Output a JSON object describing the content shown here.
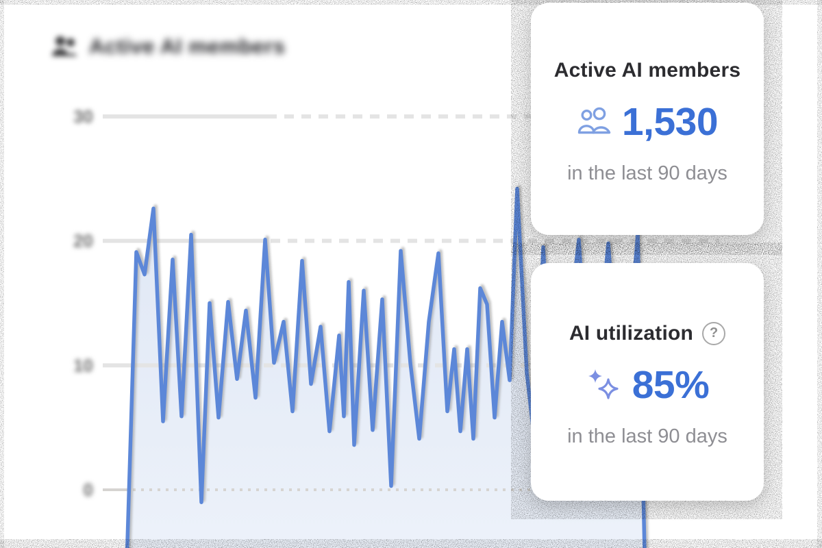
{
  "header": {
    "title": "Active AI members"
  },
  "cards": [
    {
      "title": "Active AI members",
      "icon": "users-icon",
      "value": "1,530",
      "caption": "in the last 90 days"
    },
    {
      "title": "AI utilization",
      "icon": "sparkles-icon",
      "help_icon": "?",
      "value": "85%",
      "caption": "in the last 90 days"
    }
  ],
  "colors": {
    "accent_blue": "#3b70d6",
    "icon_blue": "#7fa0e2",
    "line_blue": "#5c87d8",
    "area_fill_top": "#dfe7f5",
    "area_fill_bottom": "#edf2fa",
    "gridline": "#e4e4e4",
    "zero_line": "#d6d4d1",
    "card_title": "#2c2c30",
    "caption_gray": "#8e8e93",
    "tick_gray": "#6f6f6f"
  },
  "chart_data": {
    "type": "area",
    "title": "Active AI members",
    "ylim": [
      0,
      30
    ],
    "grid": "horizontal-dashed",
    "legend": "none",
    "x_tick_labels_visible": false,
    "x_unit": "px",
    "y_unit": "members",
    "y_ticks": [
      {
        "value": 30,
        "label": "30"
      },
      {
        "value": 20,
        "label": "20"
      },
      {
        "value": 10,
        "label": "10"
      },
      {
        "value": 0,
        "label": "0"
      }
    ],
    "points": [
      [
        185,
        -6
      ],
      [
        199,
        19.1
      ],
      [
        211,
        17.3
      ],
      [
        224,
        22.6
      ],
      [
        238,
        5.5
      ],
      [
        252,
        18.5
      ],
      [
        265,
        5.9
      ],
      [
        279,
        20.5
      ],
      [
        294,
        -1
      ],
      [
        306,
        15
      ],
      [
        319,
        5.8
      ],
      [
        333,
        15.1
      ],
      [
        346,
        8.9
      ],
      [
        359,
        14.4
      ],
      [
        373,
        7.4
      ],
      [
        387,
        20.1
      ],
      [
        400,
        10.2
      ],
      [
        414,
        13.5
      ],
      [
        427,
        6.3
      ],
      [
        441,
        18.4
      ],
      [
        454,
        8.5
      ],
      [
        468,
        13.1
      ],
      [
        481,
        4.7
      ],
      [
        495,
        12.4
      ],
      [
        502,
        5.9
      ],
      [
        509,
        16.7
      ],
      [
        517,
        3.6
      ],
      [
        531,
        16
      ],
      [
        544,
        4.8
      ],
      [
        558,
        15.3
      ],
      [
        571,
        0.3
      ],
      [
        585,
        19.2
      ],
      [
        599,
        10.2
      ],
      [
        612,
        4.1
      ],
      [
        626,
        13.5
      ],
      [
        640,
        19
      ],
      [
        653,
        6.3
      ],
      [
        663,
        11.3
      ],
      [
        672,
        4.7
      ],
      [
        682,
        11.3
      ],
      [
        691,
        4.1
      ],
      [
        701,
        16.2
      ],
      [
        711,
        14.9
      ],
      [
        722,
        5.8
      ],
      [
        733,
        13.5
      ],
      [
        744,
        8.8
      ],
      [
        755,
        24.2
      ],
      [
        769,
        9.4
      ],
      [
        781,
        3.6
      ],
      [
        793,
        19.5
      ],
      [
        808,
        4.4
      ],
      [
        822,
        9.1
      ],
      [
        845,
        20.1
      ],
      [
        862,
        5
      ],
      [
        888,
        19.8
      ],
      [
        908,
        4.8
      ],
      [
        931,
        20.6
      ],
      [
        941,
        -5
      ]
    ]
  }
}
